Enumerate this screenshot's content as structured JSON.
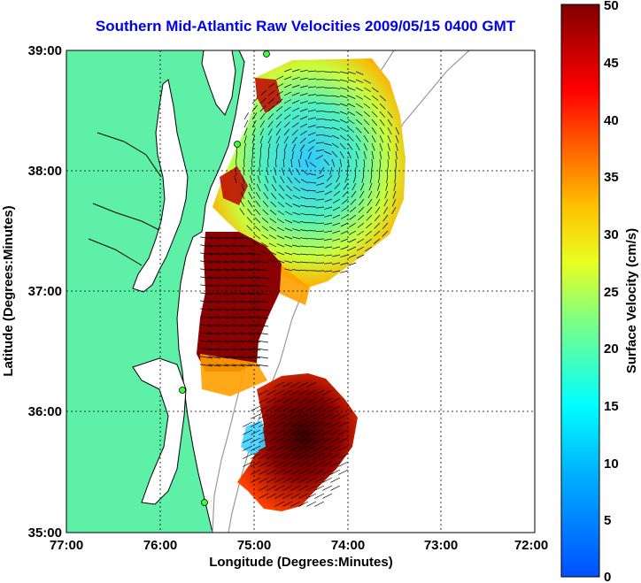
{
  "title": "Southern Mid-Atlantic Raw Velocities 2009/05/15 0400 GMT",
  "xlabel": "Longitude (Degrees:Minutes)",
  "ylabel": "Latitude (Degrees:Minutes)",
  "x_ticks": [
    "77:00",
    "76:00",
    "75:00",
    "74:00",
    "73:00",
    "72:00"
  ],
  "y_ticks": [
    "39:00",
    "38:00",
    "37:00",
    "36:00",
    "35:00"
  ],
  "colorbar": {
    "label": "Surface Velocity (cm/s)",
    "ticks": [
      "50",
      "45",
      "40",
      "35",
      "30",
      "25",
      "20",
      "15",
      "10",
      "5",
      "0"
    ]
  },
  "colors": {
    "land": "#5ff0a8",
    "title": "#0000ee"
  }
}
